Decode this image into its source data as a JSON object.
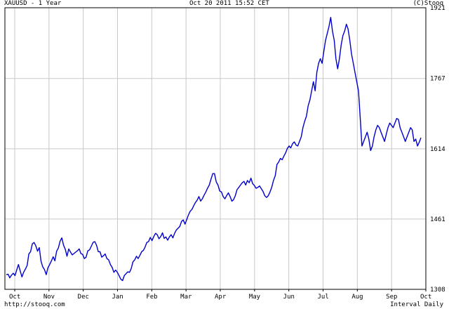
{
  "header": {
    "title": "XAUUSD - 1 Year",
    "timestamp": "Oct 20 2011 15:52 CET",
    "credit": "(C)Stooq"
  },
  "footer": {
    "url": "http://stooq.com",
    "interval": "Interval Daily"
  },
  "colors": {
    "series": "#0000cc",
    "grid": "#c8c8c8",
    "axis": "#000000"
  },
  "chart_data": {
    "type": "line",
    "series": [
      {
        "values": [
          1340,
          1341,
          1333,
          1339,
          1343,
          1338,
          1350,
          1362,
          1348,
          1335,
          1345,
          1352,
          1360,
          1385,
          1390,
          1407,
          1410,
          1403,
          1391,
          1399,
          1369,
          1357,
          1351,
          1340,
          1355,
          1362,
          1370,
          1379,
          1370,
          1391,
          1398,
          1413,
          1420,
          1404,
          1395,
          1380,
          1396,
          1389,
          1383,
          1386,
          1389,
          1392,
          1396,
          1386,
          1384,
          1375,
          1378,
          1392,
          1394,
          1402,
          1410,
          1412,
          1404,
          1390,
          1390,
          1378,
          1381,
          1385,
          1375,
          1372,
          1362,
          1356,
          1345,
          1350,
          1345,
          1338,
          1330,
          1327,
          1338,
          1342,
          1346,
          1345,
          1353,
          1368,
          1372,
          1380,
          1375,
          1382,
          1390,
          1393,
          1400,
          1410,
          1412,
          1421,
          1414,
          1423,
          1430,
          1427,
          1418,
          1423,
          1431,
          1419,
          1422,
          1415,
          1422,
          1427,
          1420,
          1430,
          1437,
          1441,
          1445,
          1456,
          1459,
          1450,
          1460,
          1470,
          1478,
          1482,
          1490,
          1497,
          1502,
          1510,
          1500,
          1505,
          1513,
          1520,
          1528,
          1535,
          1548,
          1560,
          1560,
          1542,
          1535,
          1522,
          1520,
          1510,
          1505,
          1512,
          1518,
          1510,
          1500,
          1503,
          1512,
          1525,
          1530,
          1535,
          1540,
          1543,
          1535,
          1545,
          1540,
          1550,
          1538,
          1534,
          1528,
          1530,
          1533,
          1527,
          1521,
          1512,
          1508,
          1512,
          1520,
          1530,
          1545,
          1555,
          1580,
          1585,
          1593,
          1590,
          1598,
          1605,
          1615,
          1620,
          1616,
          1625,
          1629,
          1622,
          1620,
          1630,
          1640,
          1660,
          1674,
          1685,
          1708,
          1720,
          1740,
          1760,
          1740,
          1780,
          1800,
          1810,
          1800,
          1825,
          1850,
          1865,
          1880,
          1900,
          1870,
          1850,
          1810,
          1788,
          1810,
          1840,
          1860,
          1870,
          1885,
          1875,
          1850,
          1820,
          1800,
          1780,
          1760,
          1740,
          1680,
          1620,
          1630,
          1640,
          1650,
          1635,
          1610,
          1620,
          1640,
          1655,
          1665,
          1660,
          1650,
          1640,
          1630,
          1645,
          1660,
          1670,
          1665,
          1660,
          1670,
          1680,
          1678,
          1660,
          1650,
          1640,
          1630,
          1640,
          1650,
          1660,
          1655,
          1630,
          1635,
          1620,
          1628,
          1638
        ]
      }
    ],
    "x_labels": [
      "Oct",
      "Nov",
      "Dec",
      "Jan",
      "Feb",
      "Mar",
      "Apr",
      "May",
      "Jun",
      "Jul",
      "Aug",
      "Sep",
      "Oct"
    ],
    "y_ticks": [
      1308,
      1461,
      1614,
      1767,
      1921
    ],
    "ylim": [
      1308,
      1921
    ],
    "grid": true,
    "y_axis_side": "right"
  }
}
